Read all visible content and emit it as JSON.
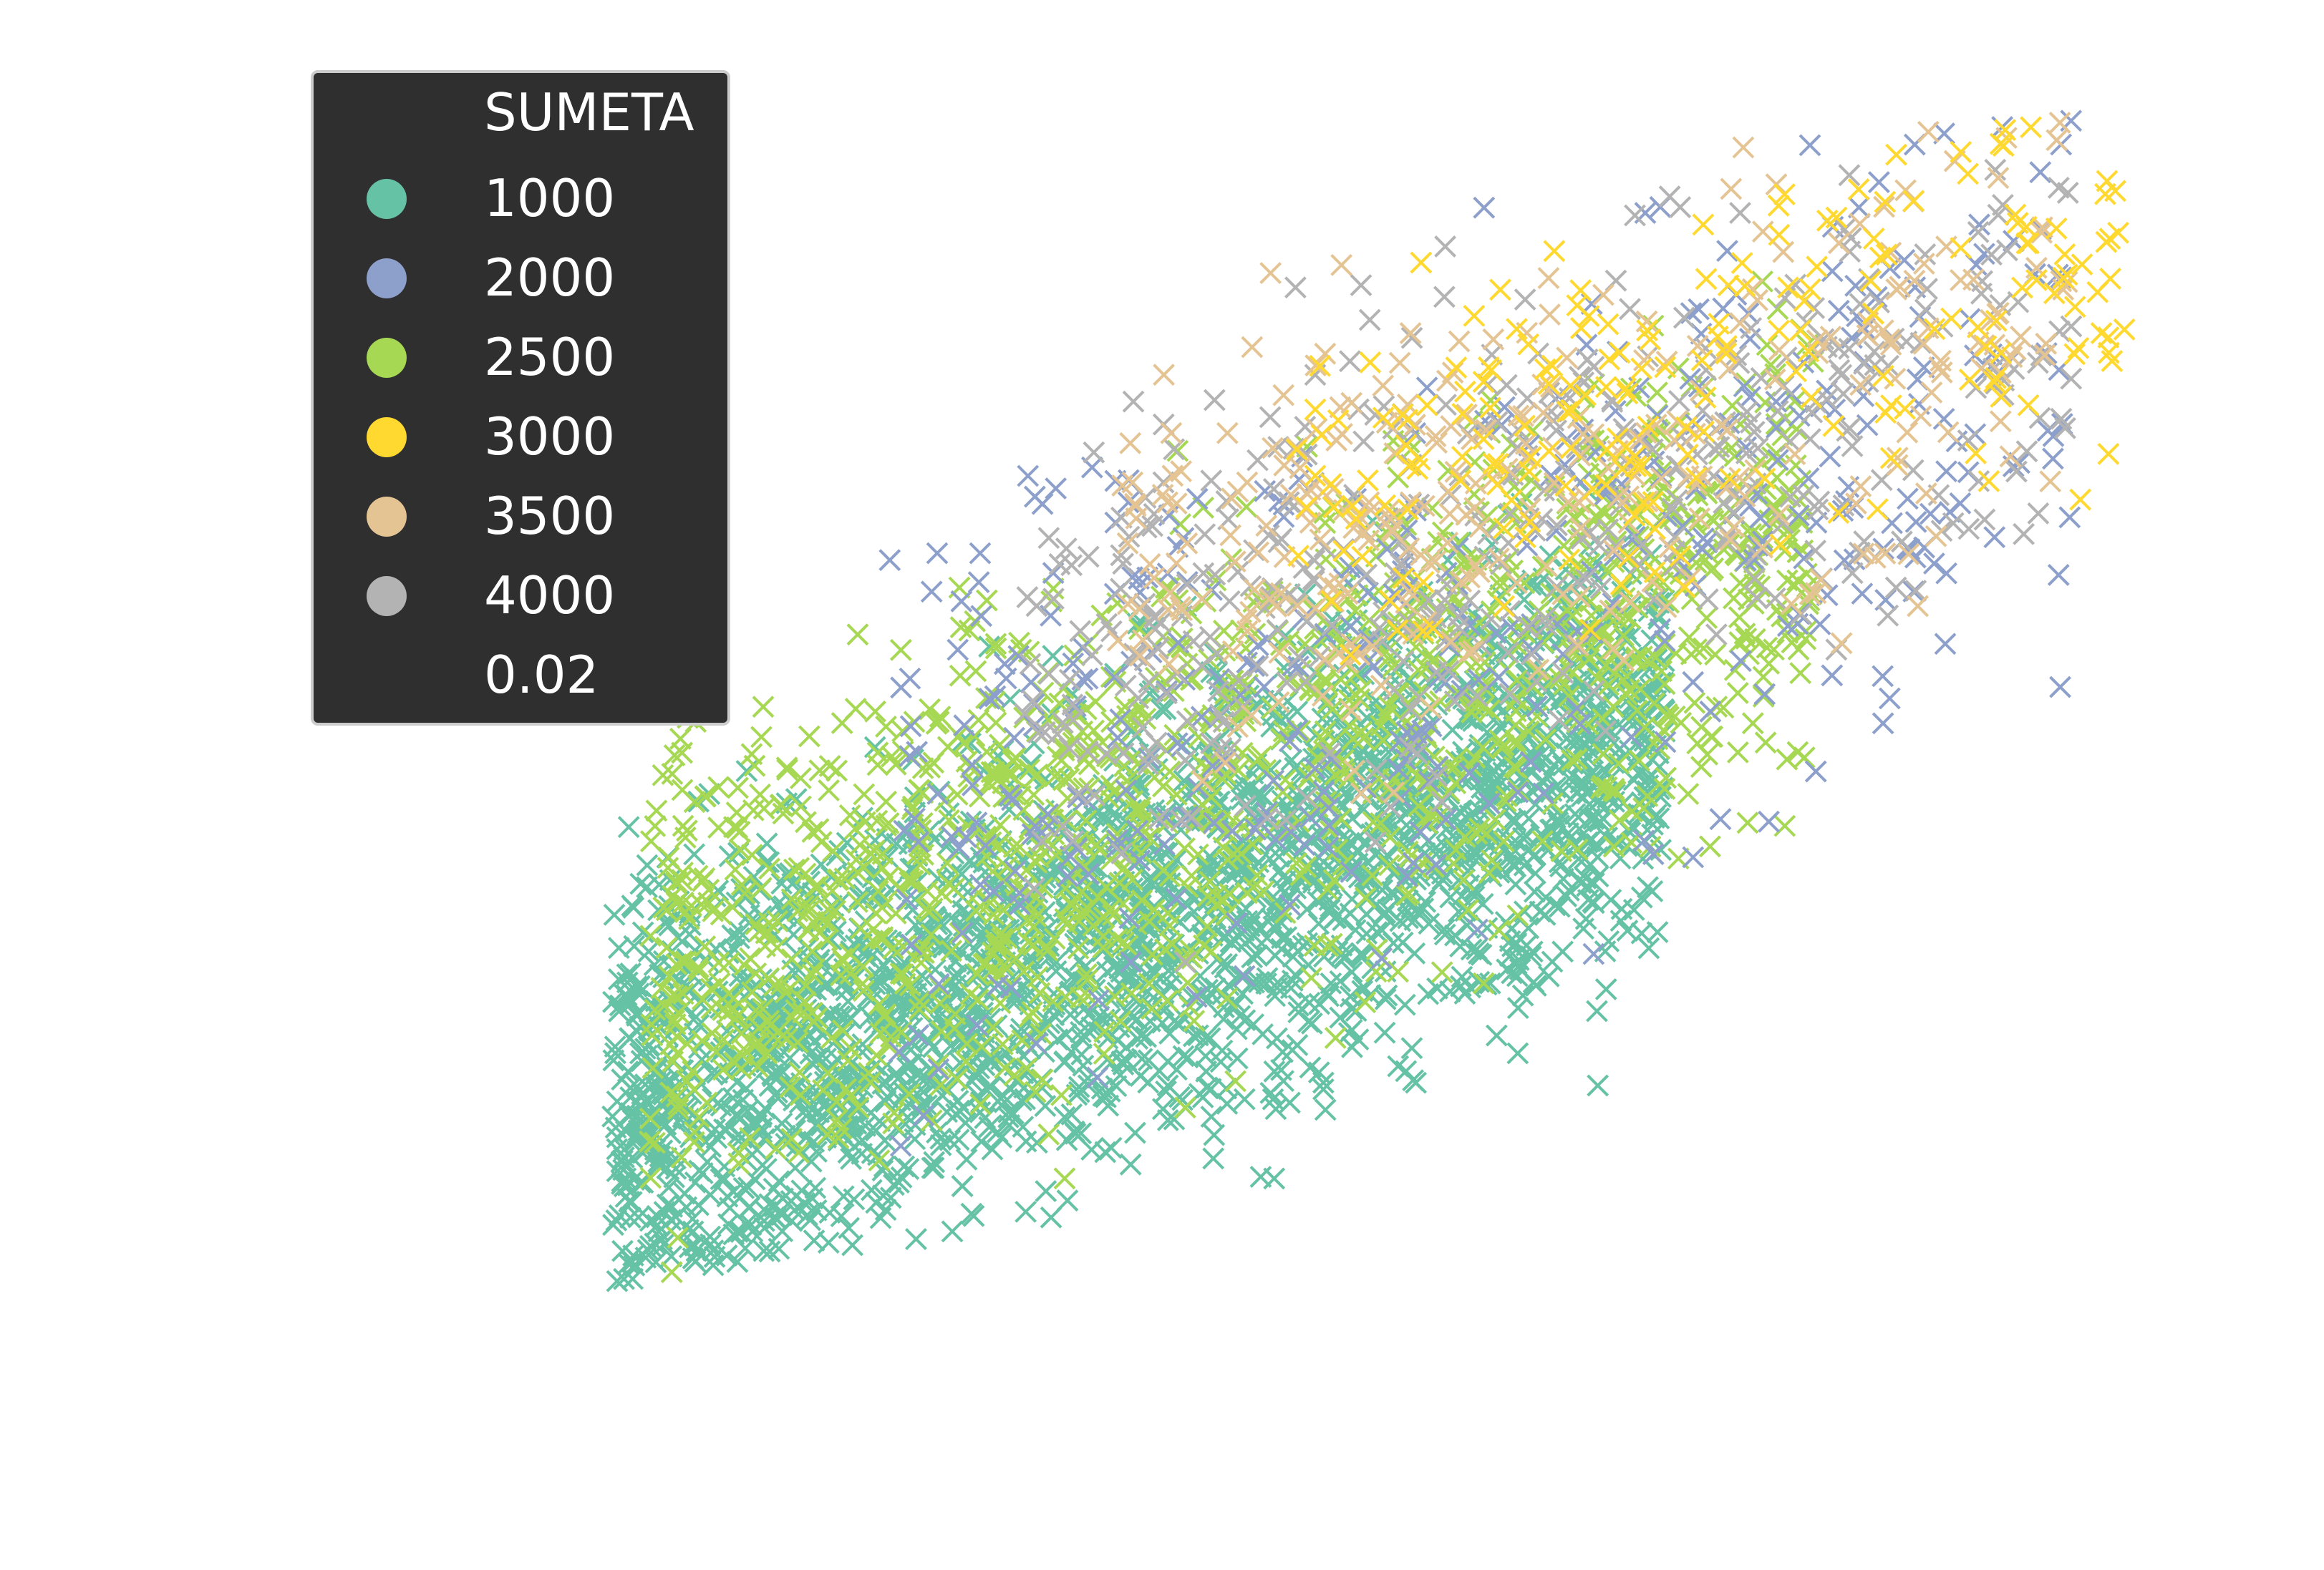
{
  "chart_data": {
    "type": "scatter",
    "marker": "x",
    "axes_visible": false,
    "grid": false,
    "legend": {
      "title": "SUMETA",
      "placement": "upper-left",
      "background": "#2f2f2f",
      "text_color": "#ffffff",
      "entries": [
        {
          "label": "1000",
          "color": "#66c2a5"
        },
        {
          "label": "2000",
          "color": "#8da0cb"
        },
        {
          "label": "2500",
          "color": "#a6d854"
        },
        {
          "label": "3000",
          "color": "#ffd92f"
        },
        {
          "label": "3500",
          "color": "#e5c494"
        },
        {
          "label": "4000",
          "color": "#b3b3b3"
        }
      ],
      "size_label": "0.02"
    },
    "xlim": [
      0,
      1
    ],
    "ylim": [
      0,
      1
    ],
    "series": [
      {
        "name": "1000",
        "color": "#66c2a5",
        "share": 0.48,
        "x_range": [
          0.13,
          0.7
        ],
        "y_center": 0.32,
        "trend": 0.55,
        "spread": 0.09
      },
      {
        "name": "2500",
        "color": "#a6d854",
        "share": 0.26,
        "x_range": [
          0.15,
          0.78
        ],
        "y_center": 0.45,
        "trend": 0.6,
        "spread": 0.1
      },
      {
        "name": "2000",
        "color": "#8da0cb",
        "share": 0.08,
        "x_range": [
          0.28,
          0.92
        ],
        "y_center": 0.58,
        "trend": 0.55,
        "spread": 0.12
      },
      {
        "name": "4000",
        "color": "#b3b3b3",
        "share": 0.08,
        "x_range": [
          0.35,
          0.92
        ],
        "y_center": 0.66,
        "trend": 0.5,
        "spread": 0.1
      },
      {
        "name": "3500",
        "color": "#e5c494",
        "share": 0.06,
        "x_range": [
          0.4,
          0.92
        ],
        "y_center": 0.7,
        "trend": 0.45,
        "spread": 0.09
      },
      {
        "name": "3000",
        "color": "#ffd92f",
        "share": 0.04,
        "x_range": [
          0.5,
          0.95
        ],
        "y_center": 0.76,
        "trend": 0.4,
        "spread": 0.08
      }
    ]
  }
}
